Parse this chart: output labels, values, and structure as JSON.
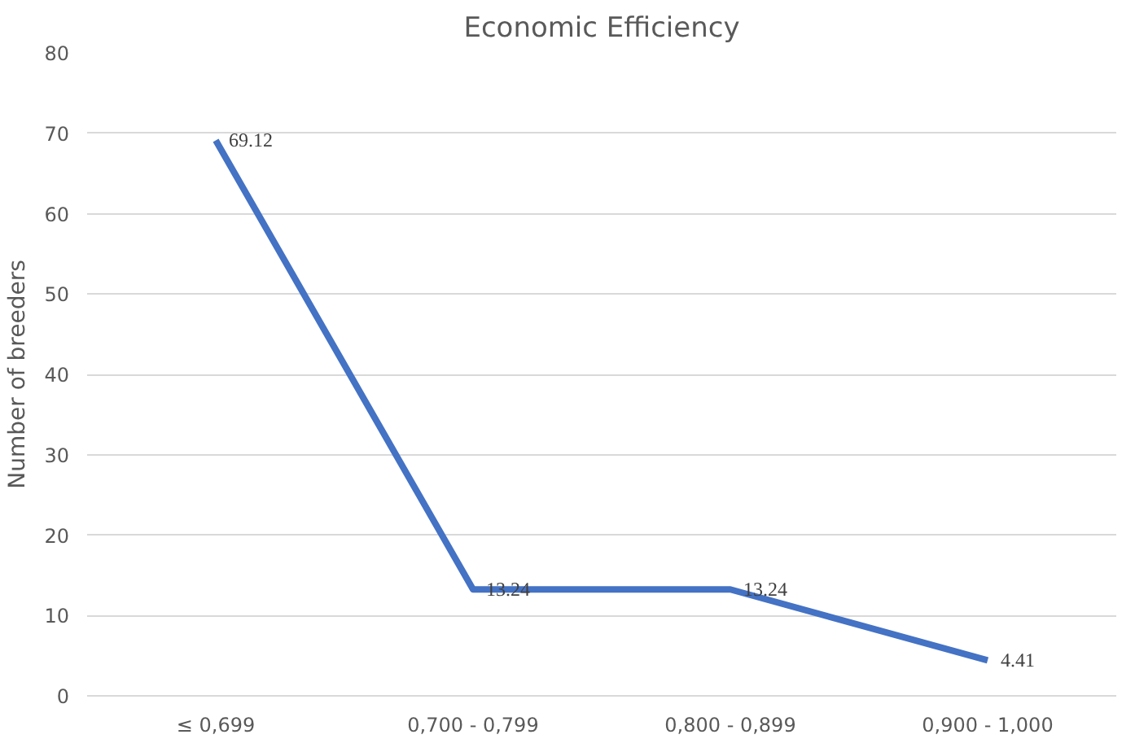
{
  "chart_data": {
    "type": "line",
    "title": "Economic Efficiency",
    "ylabel": "Number of breeders",
    "categories": [
      "≤ 0,699",
      "0,700 - 0,799",
      "0,800 - 0,899",
      "0,900 - 1,000"
    ],
    "series": [
      {
        "color": "#4472c4",
        "values": [
          69.12,
          13.24,
          13.24,
          4.41
        ]
      }
    ],
    "ylim": [
      0,
      80
    ],
    "yticks": [
      0,
      10,
      20,
      30,
      40,
      50,
      60,
      70,
      80
    ],
    "grid": "y",
    "data_labels": true,
    "marker": "none",
    "line_style": "solid"
  }
}
